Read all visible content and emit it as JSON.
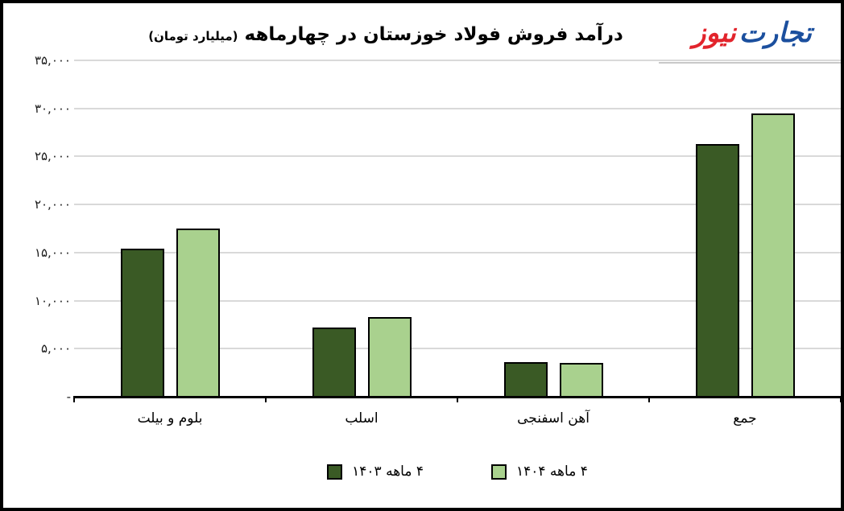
{
  "brand": {
    "first": "تجارت",
    "second": "نیوز",
    "color_first": "#1B4F9E",
    "color_second": "#E2242C"
  },
  "chart_data": {
    "type": "bar",
    "title": "درآمد فروش فولاد خوزستان در چهارماهه",
    "title_unit": "(میلیارد تومان)",
    "xlabel": "",
    "ylabel": "",
    "ylim": [
      0,
      35000
    ],
    "ytick_step": 5000,
    "grid": true,
    "legend_position": "bottom",
    "direction": "rtl",
    "categories": [
      "بلوم و بیلت",
      "اسلب",
      "آهن اسفنجی",
      "جمع"
    ],
    "series": [
      {
        "name": "۴ ماهه ۱۴۰۳",
        "color": "#3A5A25",
        "values": [
          15400,
          7200,
          3600,
          26300
        ]
      },
      {
        "name": "۴ ماهه ۱۴۰۴",
        "color": "#A9D18E",
        "values": [
          17500,
          8300,
          3500,
          29500
        ]
      }
    ],
    "yticks": [
      {
        "value": 0,
        "label": "-"
      },
      {
        "value": 5000,
        "label": "۵,۰۰۰"
      },
      {
        "value": 10000,
        "label": "۱۰,۰۰۰"
      },
      {
        "value": 15000,
        "label": "۱۵,۰۰۰"
      },
      {
        "value": 20000,
        "label": "۲۰,۰۰۰"
      },
      {
        "value": 25000,
        "label": "۲۵,۰۰۰"
      },
      {
        "value": 30000,
        "label": "۳۰,۰۰۰"
      },
      {
        "value": 35000,
        "label": "۳۵,۰۰۰"
      }
    ],
    "bar_border_color": "#000000",
    "gridline_color": "#D9D9D9",
    "axis_color": "#000000"
  }
}
